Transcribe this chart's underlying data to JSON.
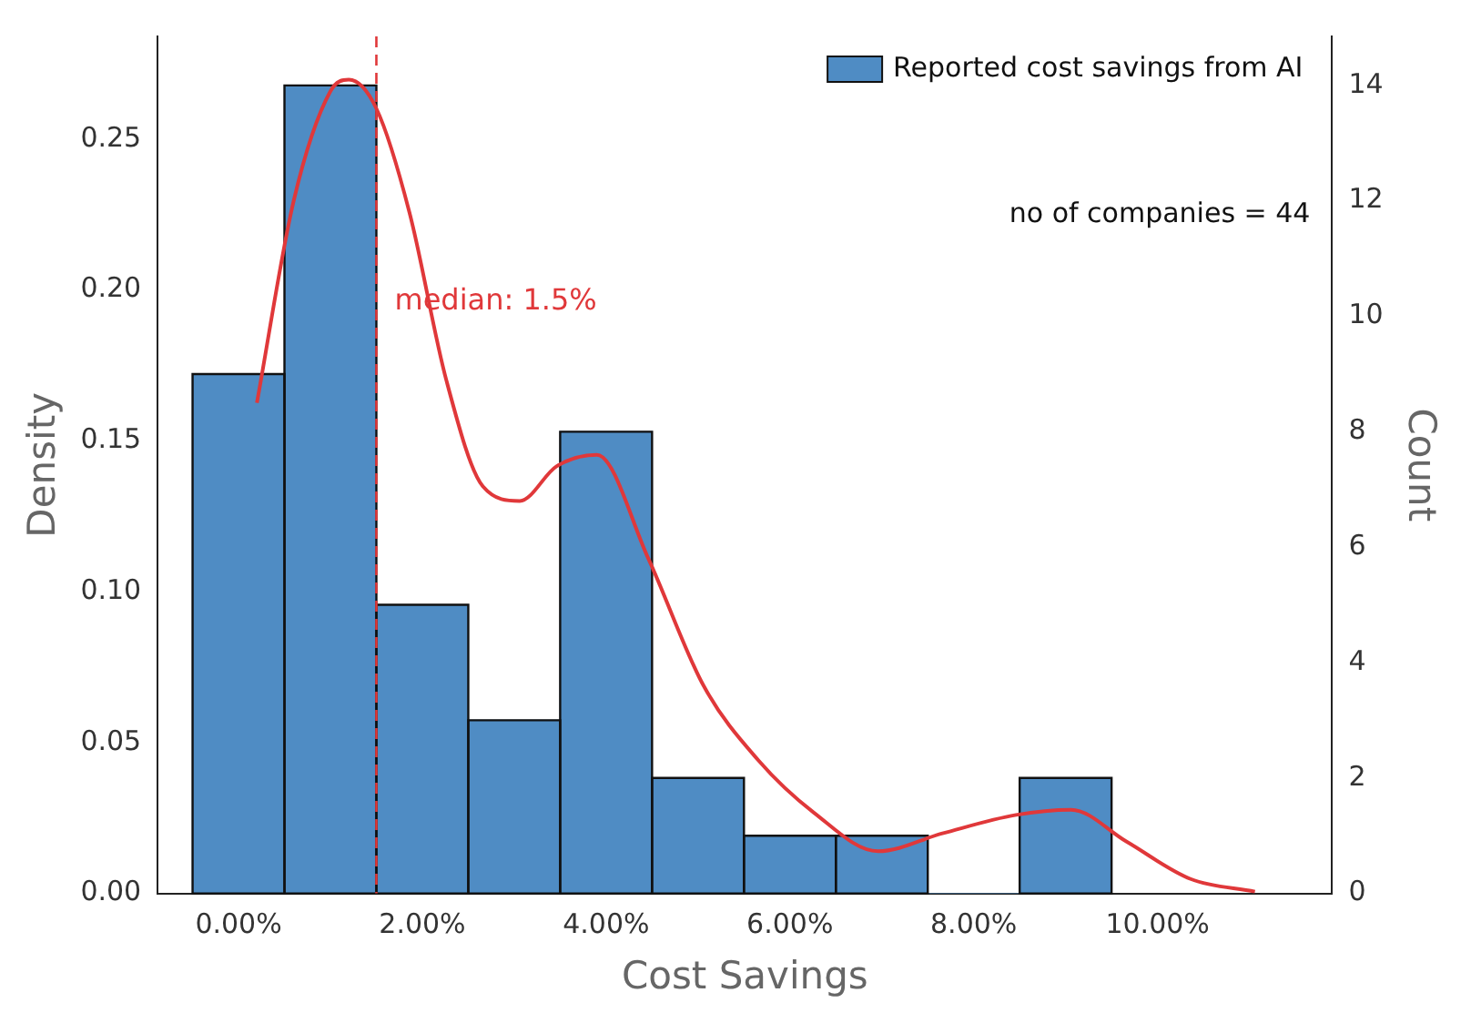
{
  "chart_data": {
    "type": "histogram",
    "xlabel": "Cost Savings",
    "ylabel": "Density",
    "y2label": "Count",
    "bins": [
      -0.5,
      0.5,
      1.5,
      2.5,
      3.5,
      4.5,
      5.5,
      6.5,
      7.5,
      8.5,
      9.5
    ],
    "series": [
      {
        "name": "Reported cost savings from AI",
        "axis": "y2",
        "color": "#4f8cc4",
        "values": [
          9,
          14,
          5,
          3,
          8,
          2,
          1,
          1,
          0,
          2
        ]
      },
      {
        "type": "line",
        "axis": "y2",
        "color": "#e0383a",
        "x": [
          0.2,
          0.6,
          1.0,
          1.2,
          1.5,
          1.86,
          2.26,
          2.66,
          3.06,
          3.46,
          3.9,
          4.46,
          5.06,
          5.66,
          6.26,
          6.96,
          7.66,
          8.46,
          9.06,
          9.66,
          10.36,
          11.06
        ],
        "values": [
          8.5,
          12.0,
          13.9,
          14.1,
          13.6,
          11.8,
          8.9,
          7.05,
          6.8,
          7.4,
          7.6,
          5.8,
          3.6,
          2.3,
          1.4,
          0.73,
          1.04,
          1.36,
          1.45,
          0.9,
          0.25,
          0.03
        ]
      }
    ],
    "xlim": [
      -0.88,
      11.9
    ],
    "xticks": [
      {
        "value": 0,
        "label": "0.00%"
      },
      {
        "value": 2,
        "label": "2.00%"
      },
      {
        "value": 4,
        "label": "4.00%"
      },
      {
        "value": 6,
        "label": "6.00%"
      },
      {
        "value": 8,
        "label": "8.00%"
      },
      {
        "value": 10,
        "label": "10.00%"
      }
    ],
    "ylim": [
      0,
      0.284
    ],
    "yticks": [
      {
        "value": 0,
        "label": "0.00"
      },
      {
        "value": 0.05,
        "label": "0.05"
      },
      {
        "value": 0.1,
        "label": "0.10"
      },
      {
        "value": 0.15,
        "label": "0.15"
      },
      {
        "value": 0.2,
        "label": "0.20"
      },
      {
        "value": 0.25,
        "label": "0.25"
      }
    ],
    "y2lim": [
      0,
      14.85
    ],
    "y2ticks": [
      0,
      2,
      4,
      6,
      8,
      10,
      12,
      14
    ],
    "ref_lines": [
      {
        "axis": "x",
        "value": 1.5,
        "label": "median: 1.5%",
        "color": "#e0383a",
        "line_style": "dashed"
      }
    ],
    "annotations": [
      "no of companies = 44"
    ],
    "legend": "top right",
    "grid": false
  }
}
